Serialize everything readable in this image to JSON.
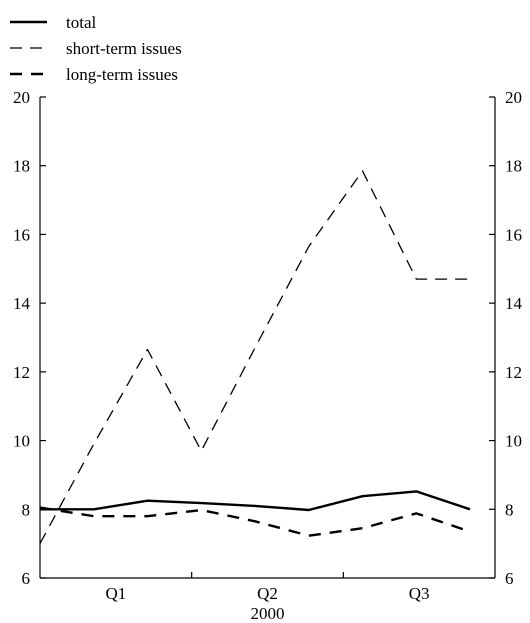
{
  "chart_data": {
    "type": "line",
    "title": "",
    "xlabel": "2000",
    "ylabel": "",
    "ylim": [
      6,
      20
    ],
    "yticks": [
      6,
      8,
      10,
      12,
      14,
      16,
      18,
      20
    ],
    "secondary_yaxis": true,
    "x_tick_labels": [
      "Q1",
      "Q2",
      "Q3"
    ],
    "x_points_per_quarter": 3,
    "legend_position": "top-left",
    "grid": false,
    "series": [
      {
        "name": "total",
        "style": "solid",
        "color": "#000000",
        "values": [
          8.0,
          8.0,
          8.25,
          8.18,
          8.1,
          7.98,
          8.38,
          8.52,
          8.0
        ]
      },
      {
        "name": "short-term issues",
        "style": "dashed-thin",
        "color": "#000000",
        "values": [
          7.0,
          9.9,
          12.65,
          9.7,
          12.7,
          15.65,
          17.85,
          14.7,
          14.7
        ]
      },
      {
        "name": "long-term issues",
        "style": "dashed-thick",
        "color": "#000000",
        "values": [
          8.05,
          7.8,
          7.8,
          7.98,
          7.65,
          7.23,
          7.45,
          7.88,
          7.35
        ]
      }
    ]
  }
}
